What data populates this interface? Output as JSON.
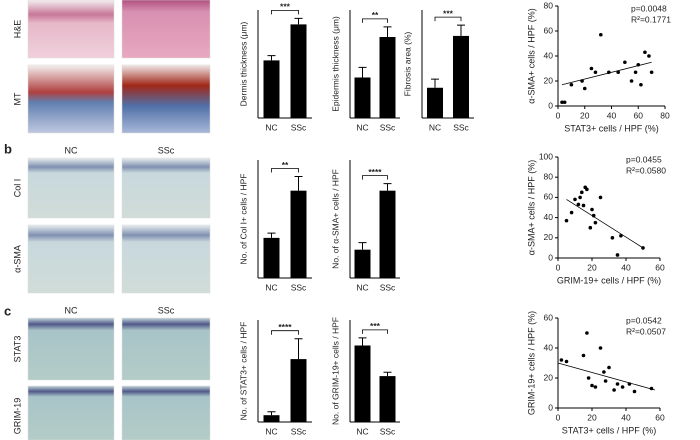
{
  "figure": {
    "panel_letters": [
      "b",
      "c"
    ],
    "column_labels": [
      "NC",
      "SSc"
    ],
    "row_labels": [
      "H&E",
      "MT",
      "Col I",
      "α-SMA",
      "STAT3",
      "GRIM-19"
    ]
  },
  "chart_data": [
    {
      "type": "bar",
      "ylabel": "Dermis thickness (μm)",
      "categories": [
        "NC",
        "SSc"
      ],
      "values": [
        240,
        390
      ],
      "errors": [
        20,
        25
      ],
      "significance": "***",
      "color": "#000000",
      "ylim": [
        0,
        450
      ]
    },
    {
      "type": "bar",
      "ylabel": "Epidermis thickness (μm)",
      "categories": [
        "NC",
        "SSc"
      ],
      "values": [
        16,
        22
      ],
      "errors": [
        1.5,
        1.5
      ],
      "significance": "**",
      "color": "#000000",
      "ylim": [
        10,
        26
      ]
    },
    {
      "type": "bar",
      "ylabel": "Fibrosis area (%)",
      "categories": [
        "NC",
        "SSc"
      ],
      "values": [
        7,
        19
      ],
      "errors": [
        2,
        2.5
      ],
      "significance": "***",
      "color": "#000000",
      "ylim": [
        0,
        25
      ]
    },
    {
      "type": "bar",
      "ylabel": "No. of Col I+ cells / HPF",
      "categories": [
        "NC",
        "SSc"
      ],
      "values": [
        17,
        37
      ],
      "errors": [
        2,
        6
      ],
      "significance": "**",
      "color": "#000000",
      "ylim": [
        0,
        50
      ]
    },
    {
      "type": "bar",
      "ylabel": "No. of α-SMA+ cells / HPF",
      "categories": [
        "NC",
        "SSc"
      ],
      "values": [
        12,
        37
      ],
      "errors": [
        3,
        3
      ],
      "significance": "****",
      "color": "#000000",
      "ylim": [
        0,
        50
      ]
    },
    {
      "type": "bar",
      "ylabel": "No. of STAT3+ cells / HPF",
      "categories": [
        "NC",
        "SSc"
      ],
      "values": [
        4,
        37
      ],
      "errors": [
        2,
        12
      ],
      "significance": "****",
      "color": "#000000",
      "ylim": [
        0,
        60
      ]
    },
    {
      "type": "bar",
      "ylabel": "No. of GRIM-19+ cells / HPF",
      "categories": [
        "NC",
        "SSc"
      ],
      "values": [
        30,
        18
      ],
      "errors": [
        3,
        1.5
      ],
      "significance": "***",
      "color": "#000000",
      "ylim": [
        0,
        40
      ]
    },
    {
      "type": "scatter",
      "xlabel": "STAT3+ cells / HPF (%)",
      "ylabel": "α-SMA+ cells / HPF (%)",
      "annotations": [
        "p=0.0048",
        "R²=0.1771"
      ],
      "x": [
        3,
        5,
        10,
        18,
        20,
        25,
        28,
        32,
        38,
        45,
        50,
        55,
        58,
        60,
        62,
        65,
        68,
        70
      ],
      "y": [
        3,
        3,
        17,
        20,
        14,
        30,
        27,
        57,
        27,
        27,
        35,
        20,
        27,
        33,
        17,
        43,
        40,
        27
      ],
      "trendline": {
        "x": [
          3,
          70
        ],
        "y": [
          17,
          35
        ]
      },
      "color": "#000000",
      "xlim": [
        0,
        80
      ],
      "xticks": [
        0,
        20,
        40,
        60,
        80
      ],
      "ylim": [
        0,
        80
      ],
      "yticks": [
        0,
        20,
        40,
        60,
        80
      ]
    },
    {
      "type": "scatter",
      "xlabel": "GRIM-19+ cells / HPF (%)",
      "ylabel": "α-SMA+ cells / HPF (%)",
      "annotations": [
        "p=0.0455",
        "R²=0.0580"
      ],
      "x": [
        5,
        8,
        10,
        12,
        13,
        14,
        15,
        16,
        17,
        19,
        20,
        21,
        22,
        25,
        32,
        35,
        37,
        50
      ],
      "y": [
        37,
        45,
        58,
        53,
        60,
        65,
        52,
        70,
        68,
        30,
        48,
        42,
        35,
        60,
        20,
        3,
        22,
        10
      ],
      "trendline": {
        "x": [
          5,
          50
        ],
        "y": [
          58,
          10
        ]
      },
      "color": "#000000",
      "xlim": [
        0,
        60
      ],
      "xticks": [
        0,
        20,
        40,
        60
      ],
      "ylim": [
        0,
        100
      ],
      "yticks": [
        0,
        20,
        40,
        60,
        80,
        100
      ]
    },
    {
      "type": "scatter",
      "xlabel": "STAT3+ cells / HPF (%)",
      "ylabel": "GRIM-19+ cells / HPF (%)",
      "annotations": [
        "p=0.0542",
        "R²=0.0507"
      ],
      "x": [
        2,
        5,
        15,
        17,
        18,
        20,
        22,
        25,
        27,
        28,
        30,
        33,
        35,
        38,
        42,
        45,
        55
      ],
      "y": [
        32,
        31,
        35,
        50,
        20,
        15,
        14,
        40,
        24,
        18,
        27,
        12,
        16,
        14,
        16,
        11,
        13
      ],
      "trendline": {
        "x": [
          0,
          57
        ],
        "y": [
          30,
          12
        ]
      },
      "color": "#000000",
      "xlim": [
        0,
        60
      ],
      "xticks": [
        0,
        20,
        40,
        60
      ],
      "ylim": [
        0,
        60
      ],
      "yticks": [
        0,
        20,
        40,
        60
      ]
    }
  ]
}
